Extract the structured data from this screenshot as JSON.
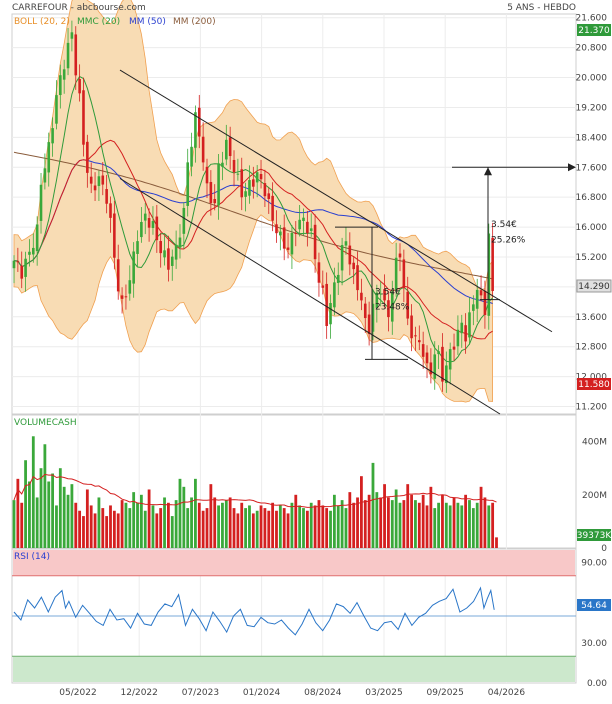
{
  "header": {
    "title": "CARREFOUR - abcbourse.com",
    "period": "5 ANS - HEBDO"
  },
  "colors": {
    "boll_band": "#f8dcb4",
    "boll_line": "#f0a050",
    "mmc20": "#d42020",
    "mm50": "#2a3fd0",
    "mm200": "#8a5c3c",
    "candle_up": "#3aa83a",
    "candle_down": "#d42020",
    "rsi": "#2a76c8",
    "rsi_over": "#f8c8c8",
    "rsi_under": "#cce8cc"
  },
  "chart_data": [
    {
      "type": "candlestick",
      "name": "price",
      "legend": [
        {
          "label": "BOLL (20, 2)",
          "color": "#e8902a"
        },
        {
          "label": "MMC (20)",
          "color": "#d42020"
        },
        {
          "label": "MM (50)",
          "color": "#2a3fd0"
        },
        {
          "label": "MM (200)",
          "color": "#8a5c3c"
        }
      ],
      "ylim": [
        11.0,
        21.7
      ],
      "y_ticks": [
        "21.600",
        "20.800",
        "20.000",
        "19.200",
        "18.400",
        "17.600",
        "16.800",
        "16.000",
        "15.200",
        "14.400",
        "13.600",
        "12.800",
        "12.000",
        "11.200"
      ],
      "price_tags": [
        {
          "label": "21.370",
          "value": 21.37,
          "color": "#2f9a3a"
        },
        {
          "label": "14.290",
          "value": 14.29,
          "color": "#555555"
        },
        {
          "label": "11.580",
          "value": 11.58,
          "color": "#d42020"
        }
      ],
      "x_ticks": [
        "05/2022",
        "12/2022",
        "07/2023",
        "01/2024",
        "08/2024",
        "03/2025",
        "09/2025",
        "04/2026"
      ],
      "close_path": [
        [
          0,
          15.1
        ],
        [
          2,
          14.8
        ],
        [
          4,
          15.3
        ],
        [
          6,
          15.9
        ],
        [
          7,
          17.2
        ],
        [
          9,
          18.1
        ],
        [
          11,
          19.5
        ],
        [
          13,
          20.4
        ],
        [
          15,
          21.2
        ],
        [
          16,
          20.2
        ],
        [
          17,
          19.4
        ],
        [
          18,
          18.3
        ],
        [
          19,
          17.5
        ],
        [
          20,
          17.0
        ],
        [
          22,
          17.3
        ],
        [
          24,
          16.8
        ],
        [
          25,
          16.1
        ],
        [
          26,
          15.2
        ],
        [
          27,
          14.4
        ],
        [
          28,
          13.9
        ],
        [
          30,
          14.6
        ],
        [
          32,
          15.8
        ],
        [
          34,
          16.3
        ],
        [
          36,
          16.0
        ],
        [
          38,
          15.4
        ],
        [
          40,
          15.0
        ],
        [
          42,
          15.4
        ],
        [
          44,
          16.4
        ],
        [
          45,
          17.7
        ],
        [
          46,
          18.3
        ],
        [
          47,
          18.9
        ],
        [
          48,
          18.5
        ],
        [
          49,
          17.8
        ],
        [
          50,
          17.0
        ],
        [
          52,
          16.6
        ],
        [
          53,
          17.6
        ],
        [
          55,
          18.2
        ],
        [
          57,
          17.6
        ],
        [
          59,
          16.9
        ],
        [
          61,
          17.1
        ],
        [
          63,
          17.4
        ],
        [
          65,
          17.0
        ],
        [
          67,
          16.2
        ],
        [
          69,
          15.7
        ],
        [
          71,
          15.4
        ],
        [
          73,
          16.0
        ],
        [
          75,
          16.2
        ],
        [
          77,
          15.8
        ],
        [
          79,
          14.6
        ],
        [
          80,
          14.2
        ],
        [
          81,
          13.5
        ],
        [
          83,
          14.4
        ],
        [
          85,
          15.4
        ],
        [
          86,
          15.6
        ],
        [
          88,
          14.7
        ],
        [
          90,
          14.1
        ],
        [
          91,
          13.4
        ],
        [
          92,
          13.3
        ],
        [
          93,
          13.9
        ],
        [
          95,
          14.4
        ],
        [
          96,
          13.9
        ],
        [
          97,
          13.6
        ],
        [
          98,
          14.4
        ],
        [
          99,
          15.0
        ],
        [
          100,
          15.3
        ],
        [
          101,
          14.4
        ],
        [
          102,
          13.4
        ],
        [
          104,
          13.0
        ],
        [
          106,
          12.7
        ],
        [
          107,
          12.2
        ],
        [
          108,
          12.1
        ],
        [
          109,
          12.7
        ],
        [
          110,
          12.5
        ],
        [
          111,
          12.0
        ],
        [
          112,
          12.3
        ],
        [
          114,
          12.9
        ],
        [
          116,
          13.4
        ],
        [
          117,
          13.1
        ],
        [
          119,
          14.0
        ],
        [
          120,
          14.4
        ],
        [
          121,
          14.0
        ],
        [
          122,
          13.8
        ],
        [
          123,
          15.8
        ],
        [
          124,
          14.29
        ]
      ],
      "annotations": [
        {
          "label": "3.54€",
          "label2": "23.48%"
        },
        {
          "label": "3.54€",
          "label2": "25.26%"
        }
      ]
    },
    {
      "type": "bar",
      "name": "volume",
      "label": "VOLUMECASH",
      "ylim": [
        0,
        500
      ],
      "y_ticks": [
        "400M",
        "200M",
        "0"
      ],
      "last_value": "39373K",
      "values": [
        180,
        260,
        170,
        330,
        250,
        420,
        190,
        300,
        390,
        250,
        280,
        160,
        300,
        230,
        200,
        240,
        170,
        140,
        120,
        220,
        160,
        130,
        190,
        150,
        120,
        160,
        140,
        130,
        180,
        170,
        150,
        210,
        170,
        200,
        140,
        220,
        160,
        130,
        150,
        190,
        170,
        120,
        180,
        260,
        230,
        150,
        190,
        260,
        170,
        140,
        150,
        240,
        190,
        160,
        170,
        180,
        190,
        150,
        130,
        170,
        150,
        160,
        130,
        140,
        160,
        150,
        140,
        170,
        140,
        160,
        150,
        130,
        170,
        200,
        160,
        150,
        140,
        170,
        160,
        180,
        160,
        150,
        140,
        200,
        160,
        180,
        150,
        210,
        170,
        190,
        270,
        180,
        200,
        320,
        210,
        190,
        240,
        190,
        180,
        220,
        170,
        180,
        240,
        200,
        180,
        170,
        200,
        160,
        230,
        150,
        170,
        200,
        170,
        160,
        190,
        170,
        160,
        200,
        180,
        150,
        170,
        230,
        190,
        160,
        170,
        40
      ],
      "ma": "20"
    },
    {
      "type": "line",
      "name": "rsi",
      "label": "RSI (14)",
      "ylim": [
        0,
        100
      ],
      "y_ticks": [
        "90.00",
        "60.00",
        "30.00",
        "0.00"
      ],
      "overbought": 80,
      "oversold": 20,
      "midline": 50,
      "last_value": "54.64",
      "points": [
        [
          0,
          53
        ],
        [
          2,
          47
        ],
        [
          4,
          62
        ],
        [
          6,
          56
        ],
        [
          8,
          64
        ],
        [
          10,
          53
        ],
        [
          12,
          64
        ],
        [
          14,
          69
        ],
        [
          15,
          56
        ],
        [
          16,
          61
        ],
        [
          18,
          49
        ],
        [
          20,
          58
        ],
        [
          22,
          52
        ],
        [
          24,
          46
        ],
        [
          26,
          43
        ],
        [
          28,
          55
        ],
        [
          30,
          47
        ],
        [
          32,
          48
        ],
        [
          34,
          41
        ],
        [
          36,
          52
        ],
        [
          38,
          44
        ],
        [
          40,
          43
        ],
        [
          42,
          53
        ],
        [
          44,
          59
        ],
        [
          46,
          57
        ],
        [
          48,
          66
        ],
        [
          50,
          43
        ],
        [
          52,
          55
        ],
        [
          54,
          48
        ],
        [
          56,
          39
        ],
        [
          58,
          53
        ],
        [
          60,
          46
        ],
        [
          62,
          38
        ],
        [
          64,
          50
        ],
        [
          66,
          55
        ],
        [
          68,
          43
        ],
        [
          70,
          42
        ],
        [
          72,
          49
        ],
        [
          74,
          45
        ],
        [
          76,
          44
        ],
        [
          78,
          47
        ],
        [
          80,
          41
        ],
        [
          82,
          36
        ],
        [
          84,
          44
        ],
        [
          86,
          55
        ],
        [
          88,
          45
        ],
        [
          90,
          39
        ],
        [
          92,
          47
        ],
        [
          94,
          59
        ],
        [
          96,
          57
        ],
        [
          98,
          52
        ],
        [
          100,
          60
        ],
        [
          102,
          50
        ],
        [
          104,
          41
        ],
        [
          106,
          39
        ],
        [
          108,
          45
        ],
        [
          110,
          46
        ],
        [
          112,
          40
        ],
        [
          114,
          52
        ],
        [
          116,
          43
        ],
        [
          118,
          49
        ],
        [
          120,
          52
        ],
        [
          122,
          58
        ],
        [
          124,
          61
        ],
        [
          126,
          63
        ],
        [
          128,
          70
        ],
        [
          130,
          53
        ],
        [
          132,
          56
        ],
        [
          134,
          61
        ],
        [
          136,
          71
        ],
        [
          137,
          56
        ],
        [
          138,
          63
        ],
        [
          139,
          69
        ],
        [
          140,
          54.64
        ]
      ]
    }
  ]
}
